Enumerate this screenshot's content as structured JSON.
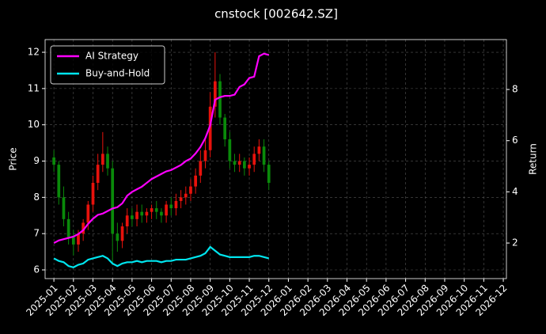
{
  "chart_data": {
    "type": "candlestick",
    "title": "cnstock [002642.SZ]",
    "ylabel": "Price",
    "y2label": "Return",
    "x": [
      0,
      0.25,
      0.5,
      0.75,
      1,
      1.25,
      1.5,
      1.75,
      2,
      2.25,
      2.5,
      2.75,
      3,
      3.25,
      3.5,
      3.75,
      4,
      4.25,
      4.5,
      4.75,
      5,
      5.25,
      5.5,
      5.75,
      6,
      6.25,
      6.5,
      6.75,
      7,
      7.25,
      7.5,
      7.75,
      8,
      8.25,
      8.5,
      8.75,
      9,
      9.25,
      9.5,
      9.75,
      10,
      10.25,
      10.5,
      10.75,
      11
    ],
    "open": [
      9.1,
      8.9,
      8.0,
      7.4,
      6.9,
      6.7,
      7.0,
      7.3,
      7.8,
      8.4,
      8.9,
      9.2,
      8.8,
      7.0,
      6.8,
      7.2,
      7.5,
      7.4,
      7.6,
      7.5,
      7.6,
      7.7,
      7.6,
      7.5,
      7.8,
      7.7,
      7.9,
      8.0,
      8.1,
      8.3,
      8.6,
      9.0,
      9.3,
      10.5,
      11.2,
      10.2,
      9.6,
      9.0,
      8.9,
      9.0,
      8.8,
      8.9,
      9.2,
      9.4,
      8.9
    ],
    "high": [
      9.3,
      9.0,
      8.3,
      7.6,
      7.1,
      7.1,
      7.4,
      7.9,
      8.6,
      9.2,
      9.8,
      9.4,
      9.0,
      7.3,
      7.3,
      7.7,
      7.7,
      7.8,
      7.8,
      7.7,
      7.8,
      7.9,
      7.7,
      7.9,
      8.0,
      8.1,
      8.2,
      8.3,
      8.5,
      8.8,
      9.3,
      9.6,
      10.9,
      12.0,
      11.4,
      10.3,
      9.8,
      9.2,
      9.2,
      9.1,
      9.1,
      9.4,
      9.6,
      9.6,
      9.0
    ],
    "low": [
      8.7,
      7.8,
      7.2,
      6.7,
      6.4,
      6.5,
      6.8,
      7.1,
      7.6,
      8.2,
      8.7,
      8.6,
      6.2,
      6.5,
      6.6,
      7.0,
      7.2,
      7.2,
      7.3,
      7.3,
      7.4,
      7.4,
      7.3,
      7.3,
      7.5,
      7.5,
      7.7,
      7.8,
      7.9,
      8.1,
      8.4,
      8.8,
      9.1,
      10.2,
      10.0,
      9.4,
      8.8,
      8.7,
      8.7,
      8.6,
      8.6,
      8.7,
      9.0,
      8.7,
      8.2
    ],
    "close": [
      8.9,
      8.0,
      7.4,
      6.9,
      6.7,
      7.0,
      7.3,
      7.8,
      8.4,
      8.9,
      9.2,
      8.8,
      7.0,
      6.8,
      7.2,
      7.5,
      7.4,
      7.6,
      7.5,
      7.6,
      7.7,
      7.6,
      7.5,
      7.8,
      7.7,
      7.9,
      8.0,
      8.1,
      8.3,
      8.6,
      9.0,
      9.3,
      10.5,
      11.2,
      10.2,
      9.6,
      9.0,
      8.9,
      9.0,
      8.8,
      8.9,
      9.2,
      9.4,
      8.9,
      8.4
    ],
    "up_color": "#e8120c",
    "down_color": "#0a8a0a",
    "series": [
      {
        "name": "AI Strategy",
        "color": "#ff00ff",
        "axis": "y2",
        "values": [
          2.0,
          2.1,
          2.15,
          2.2,
          2.25,
          2.35,
          2.5,
          2.75,
          2.95,
          3.1,
          3.15,
          3.25,
          3.35,
          3.4,
          3.55,
          3.85,
          4.0,
          4.1,
          4.2,
          4.35,
          4.5,
          4.6,
          4.7,
          4.8,
          4.85,
          4.95,
          5.05,
          5.2,
          5.3,
          5.5,
          5.75,
          6.1,
          6.6,
          7.6,
          7.7,
          7.75,
          7.75,
          7.8,
          8.1,
          8.2,
          8.45,
          8.5,
          9.3,
          9.4,
          9.35
        ]
      },
      {
        "name": "Buy-and-Hold",
        "color": "#00e5ee",
        "axis": "y2",
        "values": [
          1.4,
          1.3,
          1.25,
          1.1,
          1.05,
          1.15,
          1.2,
          1.35,
          1.4,
          1.45,
          1.5,
          1.4,
          1.2,
          1.1,
          1.2,
          1.25,
          1.25,
          1.3,
          1.25,
          1.3,
          1.3,
          1.3,
          1.25,
          1.3,
          1.3,
          1.35,
          1.35,
          1.35,
          1.4,
          1.45,
          1.5,
          1.6,
          1.85,
          1.7,
          1.55,
          1.5,
          1.45,
          1.45,
          1.45,
          1.45,
          1.45,
          1.5,
          1.5,
          1.45,
          1.4
        ]
      }
    ],
    "xlim": [
      -0.45,
      23.16
    ],
    "xticks": [
      {
        "value": 0,
        "label": "2025-01"
      },
      {
        "value": 1,
        "label": "2025-02"
      },
      {
        "value": 2,
        "label": "2025-03"
      },
      {
        "value": 3,
        "label": "2025-04"
      },
      {
        "value": 4,
        "label": "2025-05"
      },
      {
        "value": 5,
        "label": "2025-06"
      },
      {
        "value": 6,
        "label": "2025-07"
      },
      {
        "value": 7,
        "label": "2025-08"
      },
      {
        "value": 8,
        "label": "2025-09"
      },
      {
        "value": 9,
        "label": "2025-10"
      },
      {
        "value": 10,
        "label": "2025-11"
      },
      {
        "value": 11,
        "label": "2025-12"
      },
      {
        "value": 12,
        "label": "2026-01"
      },
      {
        "value": 13,
        "label": "2026-02"
      },
      {
        "value": 14,
        "label": "2026-03"
      },
      {
        "value": 15,
        "label": "2026-04"
      },
      {
        "value": 16,
        "label": "2026-05"
      },
      {
        "value": 17,
        "label": "2026-06"
      },
      {
        "value": 18,
        "label": "2026-07"
      },
      {
        "value": 19,
        "label": "2026-08"
      },
      {
        "value": 20,
        "label": "2026-09"
      },
      {
        "value": 21,
        "label": "2026-10"
      },
      {
        "value": 22,
        "label": "2026-11"
      },
      {
        "value": 23,
        "label": "2026-12"
      }
    ],
    "ylim": [
      5.76,
      12.35
    ],
    "yticks": [
      6,
      7,
      8,
      9,
      10,
      11,
      12
    ],
    "y2lim": [
      0.61,
      9.95
    ],
    "y2ticks": [
      2,
      4,
      6,
      8
    ],
    "grid": true,
    "legend": "upper left"
  }
}
